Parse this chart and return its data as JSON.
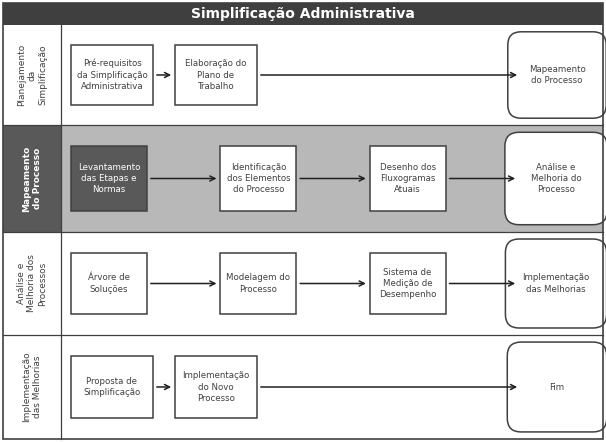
{
  "title": "Simplificação Administrativa",
  "title_bg": "#3f3f3f",
  "title_color": "#ffffff",
  "title_fontsize": 10,
  "border_color": "#3f3f3f",
  "fig_w": 6.06,
  "fig_h": 4.42,
  "dpi": 100,
  "rows": [
    {
      "label": "Planejamento\nda\nSimplificação",
      "label_bg": "#ffffff",
      "label_color": "#404040",
      "row_bg": "#ffffff",
      "label_bold": false,
      "boxes": [
        {
          "text": "Pré-requisitos\nda Simplificação\nAdministrativa",
          "style": "square",
          "fill": "#ffffff",
          "text_color": "#404040"
        },
        {
          "text": "Elaboração do\nPlano de\nTrabalho",
          "style": "square",
          "fill": "#ffffff",
          "text_color": "#404040"
        },
        {
          "text": "Mapeamento\ndo Processo",
          "style": "rounded",
          "fill": "#ffffff",
          "text_color": "#404040"
        }
      ]
    },
    {
      "label": "Mapeamento\ndo Processo",
      "label_bg": "#595959",
      "label_color": "#ffffff",
      "row_bg": "#b8b8b8",
      "label_bold": true,
      "boxes": [
        {
          "text": "Levantamento\ndas Etapas e\nNormas",
          "style": "square",
          "fill": "#595959",
          "text_color": "#ffffff"
        },
        {
          "text": "Identificação\ndos Elementos\ndo Processo",
          "style": "square",
          "fill": "#ffffff",
          "text_color": "#404040"
        },
        {
          "text": "Desenho dos\nFluxogramas\nAtuais",
          "style": "square",
          "fill": "#ffffff",
          "text_color": "#404040"
        },
        {
          "text": "Análise e\nMelhoria do\nProcesso",
          "style": "rounded",
          "fill": "#ffffff",
          "text_color": "#404040"
        }
      ]
    },
    {
      "label": "Análise e\nMelhoria dos\nProcessos",
      "label_bg": "#ffffff",
      "label_color": "#404040",
      "row_bg": "#ffffff",
      "label_bold": false,
      "boxes": [
        {
          "text": "Árvore de\nSoluções",
          "style": "square",
          "fill": "#ffffff",
          "text_color": "#404040"
        },
        {
          "text": "Modelagem do\nProcesso",
          "style": "square",
          "fill": "#ffffff",
          "text_color": "#404040"
        },
        {
          "text": "Sistema de\nMedição de\nDesempenho",
          "style": "square",
          "fill": "#ffffff",
          "text_color": "#404040"
        },
        {
          "text": "Implementação\ndas Melhorias",
          "style": "rounded",
          "fill": "#ffffff",
          "text_color": "#404040"
        }
      ]
    },
    {
      "label": "Implementação\ndas Melhorias",
      "label_bg": "#ffffff",
      "label_color": "#404040",
      "row_bg": "#ffffff",
      "label_bold": false,
      "boxes": [
        {
          "text": "Proposta de\nSimplificação",
          "style": "square",
          "fill": "#ffffff",
          "text_color": "#404040"
        },
        {
          "text": "Implementação\ndo Novo\nProcesso",
          "style": "square",
          "fill": "#ffffff",
          "text_color": "#404040"
        },
        {
          "text": "Fim",
          "style": "rounded",
          "fill": "#ffffff",
          "text_color": "#404040"
        }
      ]
    }
  ]
}
